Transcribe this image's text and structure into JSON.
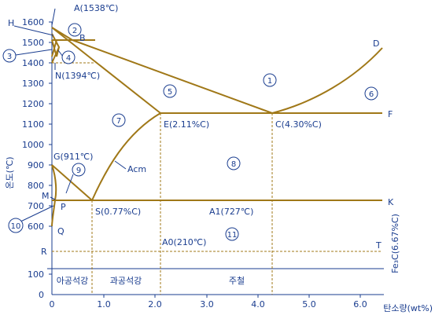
{
  "axes": {
    "y_label": "온도(℃)",
    "x_label": "탄소량(wt%)",
    "y_ticks": [
      "1600",
      "1500",
      "1400",
      "1300",
      "1200",
      "1100",
      "1000",
      "900",
      "800",
      "700",
      "600",
      "100",
      "0"
    ],
    "x_ticks": [
      "0",
      "1.0",
      "2.0",
      "3.0",
      "4.0",
      "5.0",
      "6.0"
    ],
    "right_label": "Fe₃C(6.67%C)"
  },
  "points": {
    "A": "A(1538℃)",
    "H": "H",
    "B": "B",
    "N": "N(1394℃)",
    "D": "D",
    "E": "E(2.11%C)",
    "C": "C(4.30%C)",
    "F": "F",
    "G": "G(911℃)",
    "M": "M",
    "P": "P",
    "S": "S(0.77%C)",
    "A1": "A1(727℃)",
    "K": "K",
    "Q": "Q",
    "R": "R",
    "T": "T",
    "A0": "A0(210℃)",
    "Acm": "Acm"
  },
  "regions": [
    "1",
    "2",
    "3",
    "4",
    "5",
    "6",
    "7",
    "8",
    "9",
    "10",
    "11"
  ],
  "steel_labels": {
    "hypo": "아공석강",
    "hyper": "과공석강",
    "cast_iron": "주철"
  },
  "colors": {
    "phase_line": "#a07818",
    "text": "#1a3d8f"
  }
}
